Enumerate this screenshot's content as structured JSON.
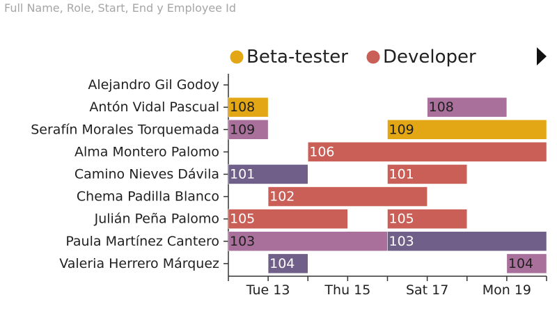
{
  "subtitle": "Full Name, Role, Start, End y Employee Id",
  "colors": {
    "Beta-tester": "#e3a615",
    "Developer": "#c95f56",
    "purple_dark": "#6f5f89",
    "purple_light": "#a8709a"
  },
  "legend": {
    "placement": "top",
    "items": [
      {
        "label": "Beta-tester",
        "color": "#e3a615"
      },
      {
        "label": "Developer",
        "color": "#c95f56"
      }
    ],
    "more_icon": "play-arrow-icon"
  },
  "chart_data": {
    "type": "gantt",
    "y_categories": [
      "Alejandro Gil Godoy",
      "Antón Vidal Pascual",
      "Serafín Morales Torquemada",
      "Alma Montero Palomo",
      "Camino Nieves Dávila",
      "Chema Padilla Blanco",
      "Julián Peña Palomo",
      "Paula Martínez Cantero",
      "Valeria Herrero Márquez"
    ],
    "x_ticks": [
      "Tue 13",
      "Thu 15",
      "Sat 17",
      "Mon 19"
    ],
    "x_tick_dates": [
      "2018-11-13",
      "2018-11-15",
      "2018-11-17",
      "2018-11-19"
    ],
    "xlim": [
      "2018-11-12",
      "2018-11-20"
    ],
    "bars": [
      {
        "name": "Antón Vidal Pascual",
        "id": "108",
        "start": "2018-11-12",
        "end": "2018-11-13",
        "color": "#e3a615",
        "text_color": "#1f1f1f"
      },
      {
        "name": "Antón Vidal Pascual",
        "id": "108",
        "start": "2018-11-17",
        "end": "2018-11-19",
        "color": "#a8709a",
        "text_color": "#1f1f1f"
      },
      {
        "name": "Serafín Morales Torquemada",
        "id": "109",
        "start": "2018-11-12",
        "end": "2018-11-13",
        "color": "#a8709a",
        "text_color": "#1f1f1f"
      },
      {
        "name": "Serafín Morales Torquemada",
        "id": "109",
        "start": "2018-11-16",
        "end": "2018-11-20",
        "color": "#e3a615",
        "text_color": "#1f1f1f"
      },
      {
        "name": "Alma Montero Palomo",
        "id": "106",
        "start": "2018-11-14",
        "end": "2018-11-20",
        "color": "#c95f56",
        "text_color": "#ffffff"
      },
      {
        "name": "Camino Nieves Dávila",
        "id": "101",
        "start": "2018-11-12",
        "end": "2018-11-14",
        "color": "#6f5f89",
        "text_color": "#ffffff"
      },
      {
        "name": "Camino Nieves Dávila",
        "id": "101",
        "start": "2018-11-16",
        "end": "2018-11-18",
        "color": "#c95f56",
        "text_color": "#ffffff"
      },
      {
        "name": "Chema Padilla Blanco",
        "id": "102",
        "start": "2018-11-13",
        "end": "2018-11-17",
        "color": "#c95f56",
        "text_color": "#ffffff"
      },
      {
        "name": "Julián Peña Palomo",
        "id": "105",
        "start": "2018-11-12",
        "end": "2018-11-15",
        "color": "#c95f56",
        "text_color": "#ffffff"
      },
      {
        "name": "Julián Peña Palomo",
        "id": "105",
        "start": "2018-11-16",
        "end": "2018-11-18",
        "color": "#c95f56",
        "text_color": "#ffffff"
      },
      {
        "name": "Paula Martínez Cantero",
        "id": "103",
        "start": "2018-11-12",
        "end": "2018-11-16",
        "color": "#a8709a",
        "text_color": "#1f1f1f"
      },
      {
        "name": "Paula Martínez Cantero",
        "id": "103",
        "start": "2018-11-16",
        "end": "2018-11-20",
        "color": "#6f5f89",
        "text_color": "#ffffff"
      },
      {
        "name": "Valeria Herrero Márquez",
        "id": "104",
        "start": "2018-11-13",
        "end": "2018-11-14",
        "color": "#6f5f89",
        "text_color": "#ffffff"
      },
      {
        "name": "Valeria Herrero Márquez",
        "id": "104",
        "start": "2018-11-19",
        "end": "2018-11-20",
        "color": "#a8709a",
        "text_color": "#1f1f1f"
      }
    ]
  }
}
